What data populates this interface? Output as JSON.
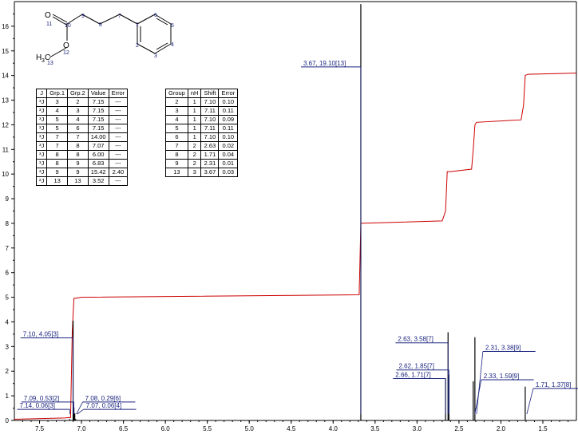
{
  "structure": {
    "atom_labels": [
      "11",
      "10",
      "9",
      "8",
      "7",
      "1",
      "6",
      "5",
      "4",
      "3",
      "2",
      "12",
      "13"
    ],
    "o_carbonyl": "O",
    "o_ester": "O",
    "methyl_h": "H",
    "methyl_sub": "3",
    "methyl_c": "C"
  },
  "coupling_table": {
    "headers": [
      "J",
      "Grp.1",
      "Grp.2",
      "Value",
      "Error"
    ],
    "rows": [
      [
        "³J",
        "3",
        "2",
        "7.15",
        "---"
      ],
      [
        "³J",
        "4",
        "3",
        "7.15",
        "---"
      ],
      [
        "³J",
        "5",
        "4",
        "7.15",
        "---"
      ],
      [
        "³J",
        "5",
        "6",
        "7.15",
        "---"
      ],
      [
        "³J",
        "7",
        "7",
        "14.00",
        "---"
      ],
      [
        "³J",
        "7",
        "8",
        "7.07",
        "---"
      ],
      [
        "³J",
        "8",
        "8",
        "6.00",
        "---"
      ],
      [
        "³J",
        "8",
        "9",
        "6.83",
        "---"
      ],
      [
        "³J",
        "9",
        "9",
        "15.42",
        "2.40"
      ],
      [
        "²J",
        "13",
        "13",
        "3.52",
        "---"
      ]
    ]
  },
  "shift_table": {
    "headers": [
      "Group",
      "nH",
      "Shift",
      "Error"
    ],
    "rows": [
      [
        "2",
        "1",
        "7.10",
        "0.10"
      ],
      [
        "3",
        "1",
        "7.11",
        "0.11"
      ],
      [
        "4",
        "1",
        "7.10",
        "0.09"
      ],
      [
        "5",
        "1",
        "7.11",
        "0.11"
      ],
      [
        "6",
        "1",
        "7.10",
        "0.10"
      ],
      [
        "7",
        "2",
        "2.63",
        "0.02"
      ],
      [
        "8",
        "2",
        "1.71",
        "0.04"
      ],
      [
        "9",
        "2",
        "2.31",
        "0.01"
      ],
      [
        "13",
        "3",
        "3.67",
        "0.03"
      ]
    ]
  },
  "colors": {
    "integral": "#cc0000",
    "peak_label": "#1a237e",
    "spectrum": "#000000"
  },
  "chart_data": {
    "type": "line",
    "title": "",
    "xlabel": "",
    "ylabel": "",
    "xlim": [
      7.8,
      1.1
    ],
    "ylim": [
      0,
      17
    ],
    "x_ticks": [
      "7.5",
      "7.0",
      "6.5",
      "6.0",
      "5.5",
      "5.0",
      "4.5",
      "4.0",
      "3.5",
      "3.0",
      "2.5",
      "2.0",
      "1.5"
    ],
    "y_ticks": [
      "0",
      "1",
      "2",
      "3",
      "4",
      "5",
      "6",
      "7",
      "8",
      "9",
      "10",
      "11",
      "12",
      "13",
      "14",
      "15",
      "16"
    ],
    "peaks": [
      {
        "shift": 7.14,
        "height": 0.06
      },
      {
        "shift": 7.1,
        "height": 4.05
      },
      {
        "shift": 7.09,
        "height": 0.53
      },
      {
        "shift": 7.08,
        "height": 0.29
      },
      {
        "shift": 7.07,
        "height": 0.06
      },
      {
        "shift": 3.67,
        "height": 19.1
      },
      {
        "shift": 2.66,
        "height": 1.71
      },
      {
        "shift": 2.63,
        "height": 3.58
      },
      {
        "shift": 2.62,
        "height": 1.85
      },
      {
        "shift": 2.33,
        "height": 1.59
      },
      {
        "shift": 2.31,
        "height": 3.38
      },
      {
        "shift": 1.71,
        "height": 1.37
      }
    ],
    "peak_labels": [
      {
        "text": "7.10, 4.05[3]",
        "shift": 7.1,
        "level": 3.35,
        "side": "left"
      },
      {
        "text": "7.09, 0.53[2]",
        "shift": 7.09,
        "level": 0.75,
        "side": "left"
      },
      {
        "text": "7.14, 0.06[3]",
        "shift": 7.14,
        "level": 0.45,
        "side": "left"
      },
      {
        "text": "7.08, 0.29[6]",
        "shift": 7.08,
        "level": 0.75,
        "side": "right"
      },
      {
        "text": "7.07, 0.06[4]",
        "shift": 7.07,
        "level": 0.45,
        "side": "right"
      },
      {
        "text": "3.67, 19.10[13]",
        "shift": 3.67,
        "level": 14.35,
        "side": "left"
      },
      {
        "text": "2.63, 3.58[7]",
        "shift": 2.63,
        "level": 3.15,
        "side": "left"
      },
      {
        "text": "2.31, 3.38[9]",
        "shift": 2.31,
        "level": 2.8,
        "side": "right"
      },
      {
        "text": "2.62, 1.85[7]",
        "shift": 2.62,
        "level": 2.05,
        "side": "left"
      },
      {
        "text": "2.66, 1.71[7]",
        "shift": 2.66,
        "level": 1.7,
        "side": "left"
      },
      {
        "text": "2.33, 1.59[9]",
        "shift": 2.33,
        "level": 1.65,
        "side": "right"
      },
      {
        "text": "1.71, 1.37[8]",
        "shift": 1.71,
        "level": 1.3,
        "side": "right"
      }
    ],
    "integral": [
      [
        7.8,
        0.05
      ],
      [
        7.2,
        0.1
      ],
      [
        7.13,
        0.12
      ],
      [
        7.11,
        3.6
      ],
      [
        7.09,
        4.95
      ],
      [
        7.0,
        5.0
      ],
      [
        3.69,
        5.1
      ],
      [
        3.67,
        8.0
      ],
      [
        2.7,
        8.1
      ],
      [
        2.66,
        8.5
      ],
      [
        2.64,
        10.1
      ],
      [
        2.6,
        10.1
      ],
      [
        2.35,
        10.2
      ],
      [
        2.33,
        11.0
      ],
      [
        2.31,
        12.0
      ],
      [
        2.29,
        12.1
      ],
      [
        1.76,
        12.2
      ],
      [
        1.73,
        12.8
      ],
      [
        1.71,
        14.0
      ],
      [
        1.68,
        14.05
      ],
      [
        1.1,
        14.1
      ]
    ]
  }
}
